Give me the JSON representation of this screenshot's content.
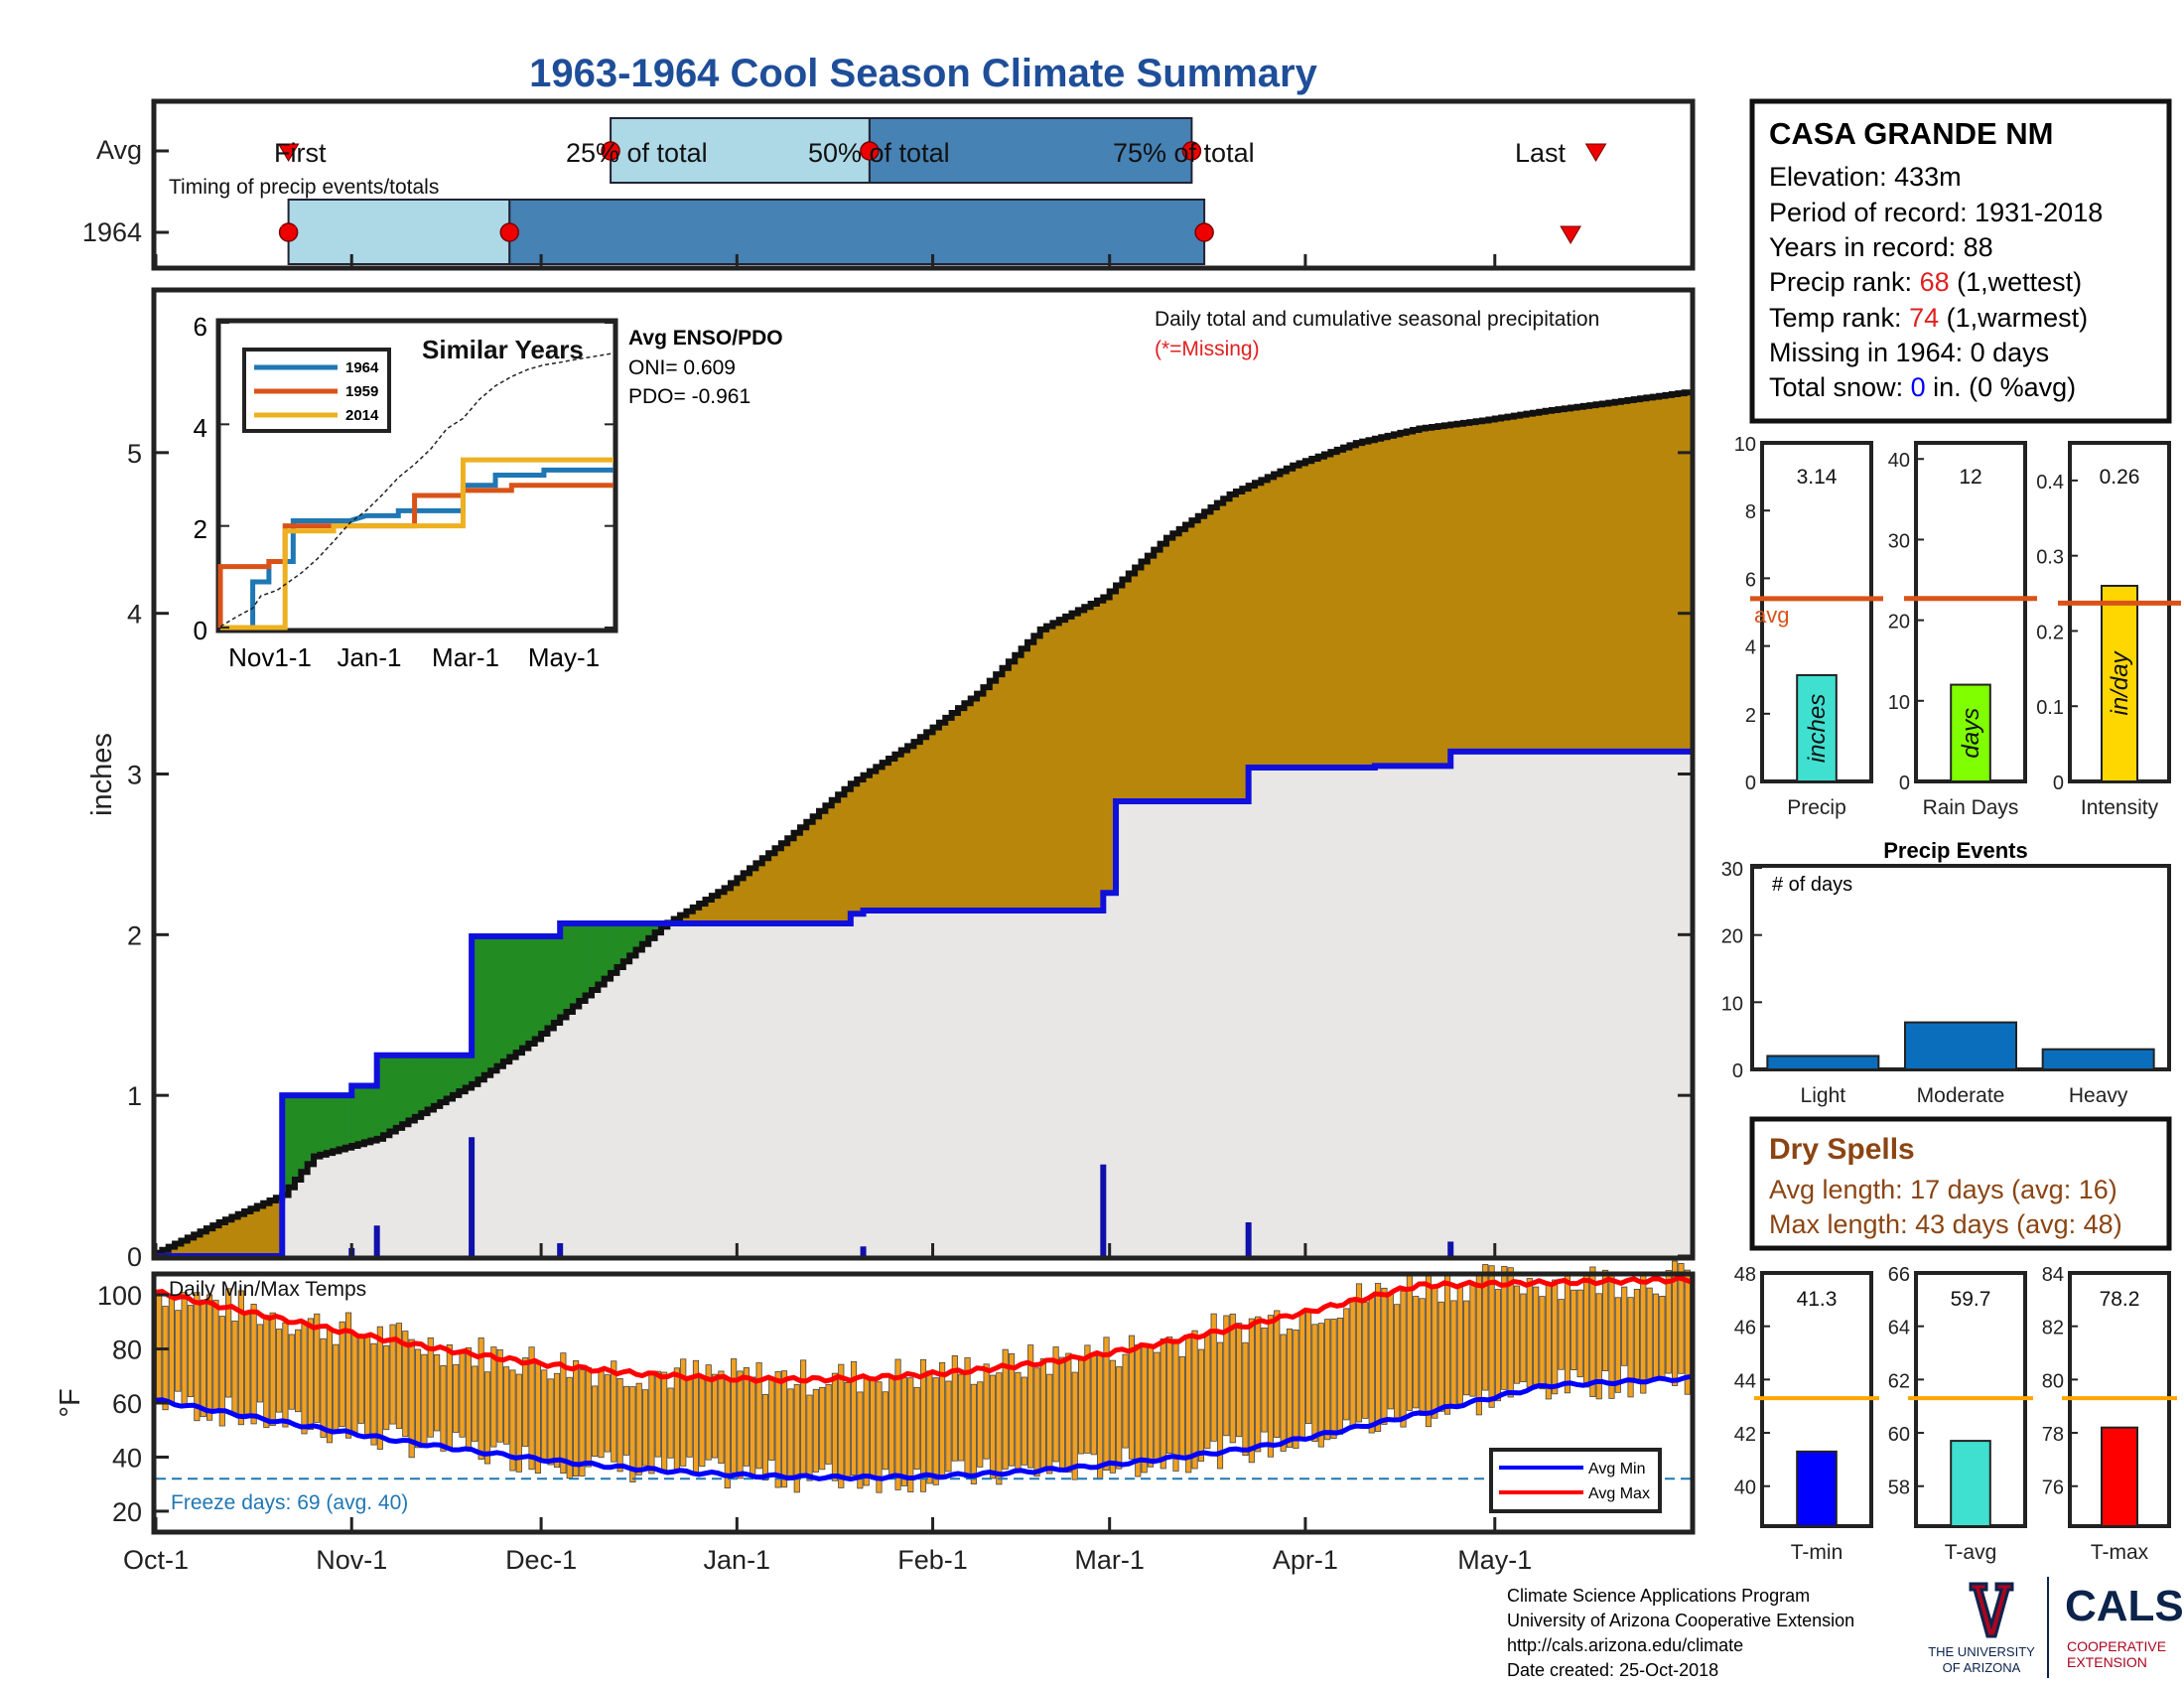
{
  "title": "1963-1964 Cool Season Climate Summary",
  "station": {
    "name": "CASA GRANDE NM",
    "elevation": "Elevation: 433m",
    "period": "Period of record: 1931-2018",
    "years": "Years in record: 88",
    "precip_rank_label": "Precip rank: ",
    "precip_rank_value": "68",
    "precip_rank_note": " (1,wettest)",
    "temp_rank_label": "Temp rank: ",
    "temp_rank_value": "74",
    "temp_rank_note": " (1,warmest)",
    "missing": "Missing in 1964: 0 days",
    "snow_label": "Total snow: ",
    "snow_value": "0",
    "snow_note": " in. (0 %avg)"
  },
  "timing": {
    "row_avg": "Avg",
    "row_year": "1964",
    "caption": "Timing of precip events/totals",
    "first": "First",
    "p25": "25% of total",
    "p50": "50% of total",
    "p75": "75% of total",
    "last": "Last",
    "avg_marks_days": {
      "first": 21,
      "p25": 72,
      "p50": 113,
      "p75": 164,
      "last": 228
    },
    "year_marks_days": {
      "first": 21,
      "p25": 56,
      "p50": 56,
      "p75": 166,
      "last": 224
    }
  },
  "main_chart": {
    "ylabel": "inches",
    "note": "Daily total and cumulative seasonal precipitation",
    "missing_note": "(*=Missing)",
    "ylim": [
      0,
      6
    ],
    "yticks": [
      0,
      1,
      2,
      3,
      4,
      5
    ],
    "months": [
      "Oct-1",
      "Nov-1",
      "Dec-1",
      "Jan-1",
      "Feb-1",
      "Mar-1",
      "Apr-1",
      "May-1"
    ],
    "month_days": [
      0,
      31,
      61,
      92,
      123,
      151,
      182,
      212
    ],
    "season_days": 243
  },
  "inset": {
    "title": "Similar Years",
    "xticks": [
      "Nov1-1",
      "Jan-1",
      "Mar-1",
      "May-1"
    ],
    "yticks": [
      "0",
      "2",
      "4",
      "6"
    ],
    "legend": [
      {
        "name": "1964",
        "color": "#1f77b4"
      },
      {
        "name": "1959",
        "color": "#d95319"
      },
      {
        "name": "2014",
        "color": "#edb120"
      }
    ],
    "enso_title": "Avg ENSO/PDO",
    "oni": "ONI= 0.609",
    "pdo": "PDO= -0.961"
  },
  "summary_bars": [
    {
      "label": "Precip",
      "value": "3.14",
      "unit": "inches",
      "color": "#40e0d0",
      "yticks": [
        "0",
        "2",
        "4",
        "6",
        "8",
        "10"
      ],
      "ymax": 10,
      "val": 3.14,
      "avg": 5.4,
      "avg_label": "avg"
    },
    {
      "label": "Rain Days",
      "value": "12",
      "unit": "days",
      "color": "#7fff00",
      "yticks": [
        "0",
        "10",
        "20",
        "30",
        "40"
      ],
      "ymax": 42,
      "val": 12,
      "avg": 22.7,
      "avg_label": ""
    },
    {
      "label": "Intensity",
      "value": "0.26",
      "unit": "in/day",
      "color": "#ffd700",
      "yticks": [
        "0",
        "0.1",
        "0.2",
        "0.3",
        "0.4"
      ],
      "ymax": 0.45,
      "val": 0.26,
      "avg": 0.237,
      "avg_label": ""
    }
  ],
  "precip_events": {
    "title": "Precip Events",
    "ylabel": "# of days",
    "yticks": [
      "0",
      "10",
      "20",
      "30"
    ],
    "categories": [
      "Light",
      "Moderate",
      "Heavy"
    ],
    "values": [
      2,
      7,
      3
    ]
  },
  "dry_spells": {
    "title": "Dry Spells",
    "avg": "Avg length: 17 days (avg: 16)",
    "max": "Max length: 43 days (avg: 48)"
  },
  "temp_chart": {
    "title": "Daily Min/Max Temps",
    "ylabel": "°F",
    "yticks": [
      "20",
      "40",
      "60",
      "80",
      "100"
    ],
    "ylim": [
      13,
      107
    ],
    "freeze": "Freeze days: 69 (avg. 40)",
    "legend_min": "Avg Min",
    "legend_max": "Avg Max"
  },
  "temp_bars": [
    {
      "label": "T-min",
      "value": "41.3",
      "color": "#0000ff",
      "yticks": [
        "40",
        "42",
        "44",
        "46",
        "48"
      ],
      "ymin": 38.5,
      "ymax": 48,
      "val": 41.3,
      "avg": 43.3
    },
    {
      "label": "T-avg",
      "value": "59.7",
      "color": "#40e0d0",
      "yticks": [
        "58",
        "60",
        "62",
        "64",
        "66"
      ],
      "ymin": 56.5,
      "ymax": 66,
      "val": 59.7,
      "avg": 61.3
    },
    {
      "label": "T-max",
      "value": "78.2",
      "color": "#ff0000",
      "yticks": [
        "76",
        "78",
        "80",
        "82",
        "84"
      ],
      "ymin": 74.5,
      "ymax": 84,
      "val": 78.2,
      "avg": 79.3
    }
  ],
  "footer": [
    "Climate Science Applications Program",
    "University of Arizona Cooperative Extension",
    "http://cals.arizona.edu/climate",
    " Date created: 25-Oct-2018"
  ],
  "logos": {
    "ua_line1": "THE UNIVERSITY",
    "ua_line2": "OF ARIZONA",
    "cals": "CALS",
    "coop1": "COOPERATIVE",
    "coop2": "EXTENSION"
  },
  "chart_data": {
    "type": "area",
    "title": "1963-1964 Cool Season Climate Summary",
    "ylabel": "inches",
    "x_units": "days since Oct-1",
    "ylim": [
      0,
      6
    ],
    "series": [
      {
        "name": "1964",
        "x": [
          0,
          20,
          20,
          31,
          31,
          35,
          35,
          50,
          50,
          64,
          64,
          110,
          110,
          112,
          112,
          150,
          150,
          152,
          152,
          173,
          173,
          193,
          193,
          205,
          205,
          243
        ],
        "values": [
          0,
          0,
          1.0,
          1.0,
          1.06,
          1.06,
          1.25,
          1.25,
          1.99,
          1.99,
          2.07,
          2.07,
          2.13,
          2.13,
          2.15,
          2.15,
          2.26,
          2.26,
          2.83,
          2.83,
          3.04,
          3.04,
          3.05,
          3.05,
          3.14,
          3.14
        ]
      },
      {
        "name": "Avg",
        "x": [
          0,
          10,
          20,
          25,
          35,
          50,
          60,
          70,
          80,
          90,
          100,
          110,
          120,
          130,
          140,
          150,
          160,
          170,
          180,
          190,
          200,
          210,
          220,
          230,
          243
        ],
        "values": [
          0.02,
          0.21,
          0.38,
          0.62,
          0.73,
          1.07,
          1.35,
          1.69,
          2.05,
          2.29,
          2.6,
          2.94,
          3.2,
          3.5,
          3.9,
          4.1,
          4.47,
          4.74,
          4.92,
          5.06,
          5.15,
          5.2,
          5.26,
          5.31,
          5.38
        ]
      }
    ],
    "daily_precip": {
      "x": [
        31,
        35,
        50,
        64,
        112,
        150,
        173,
        205
      ],
      "values": [
        0.05,
        0.19,
        0.74,
        0.08,
        0.06,
        0.57,
        0.21,
        0.09
      ]
    }
  }
}
